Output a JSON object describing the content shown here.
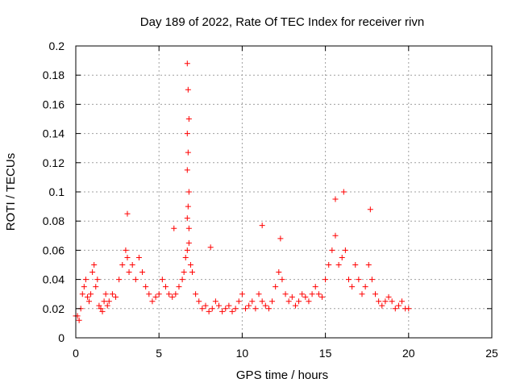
{
  "chart_data": {
    "type": "scatter",
    "title": "Day 189 of 2022, Rate Of TEC Index for receiver rivn",
    "xlabel": "GPS time / hours",
    "ylabel": "ROTI / TECUs",
    "xlim": [
      0,
      25
    ],
    "ylim": [
      0,
      0.2
    ],
    "xticks": [
      0,
      5,
      10,
      15,
      20,
      25
    ],
    "xtick_labels": [
      "0",
      "5",
      "10",
      "15",
      "20",
      "25"
    ],
    "yticks": [
      0,
      0.02,
      0.04,
      0.06,
      0.08,
      0.1,
      0.12,
      0.14,
      0.16,
      0.18,
      0.2
    ],
    "ytick_labels": [
      "0",
      "0.02",
      "0.04",
      "0.06",
      "0.08",
      "0.1",
      "0.12",
      "0.14",
      "0.16",
      "0.18",
      "0.2"
    ],
    "grid": true,
    "marker": "+",
    "color": "#ff0000",
    "series": [
      {
        "x": [
          0.0,
          0.1,
          0.2,
          0.3,
          0.4,
          0.5,
          0.6,
          0.7,
          0.8,
          0.9,
          1.0,
          1.1,
          1.2,
          1.3,
          1.4,
          1.5,
          1.6,
          1.7,
          1.8,
          1.9,
          2.0,
          2.2,
          2.4,
          2.6,
          2.8,
          3.0,
          3.1,
          3.2,
          3.4,
          3.6,
          3.8,
          4.0,
          4.2,
          4.4,
          4.6,
          4.8,
          5.0,
          5.2,
          5.4,
          5.6,
          5.8,
          6.0,
          6.2,
          6.4,
          6.5,
          6.6,
          6.7,
          6.8,
          6.9,
          7.0,
          7.2,
          7.4,
          7.6,
          7.8,
          8.0,
          8.2,
          8.4,
          8.6,
          8.8,
          9.0,
          9.2,
          9.4,
          9.6,
          9.8,
          10.0,
          10.2,
          10.4,
          10.6,
          10.8,
          11.0,
          11.2,
          11.4,
          11.6,
          11.8,
          12.0,
          12.2,
          12.4,
          12.6,
          12.8,
          13.0,
          13.2,
          13.4,
          13.6,
          13.8,
          14.0,
          14.2,
          14.4,
          14.6,
          14.8,
          15.0,
          15.2,
          15.4,
          15.6,
          15.8,
          16.0,
          16.2,
          16.4,
          16.6,
          16.8,
          17.0,
          17.2,
          17.4,
          17.6,
          17.8,
          18.0,
          18.2,
          18.4,
          18.6,
          18.8,
          19.0,
          19.2,
          19.4,
          19.6,
          19.8,
          20.0,
          6.7,
          6.75,
          6.8,
          6.7,
          6.75,
          6.7,
          6.8,
          6.75,
          6.7,
          6.8,
          15.6,
          16.1,
          17.7,
          3.1,
          11.2,
          12.3,
          5.9,
          8.1
        ],
        "y": [
          0.015,
          0.015,
          0.012,
          0.02,
          0.03,
          0.035,
          0.04,
          0.028,
          0.025,
          0.03,
          0.045,
          0.05,
          0.035,
          0.04,
          0.022,
          0.02,
          0.018,
          0.025,
          0.03,
          0.022,
          0.025,
          0.03,
          0.028,
          0.04,
          0.05,
          0.06,
          0.055,
          0.045,
          0.05,
          0.04,
          0.055,
          0.045,
          0.035,
          0.03,
          0.025,
          0.028,
          0.03,
          0.04,
          0.035,
          0.03,
          0.028,
          0.03,
          0.035,
          0.04,
          0.045,
          0.055,
          0.06,
          0.065,
          0.05,
          0.045,
          0.03,
          0.025,
          0.02,
          0.022,
          0.018,
          0.02,
          0.025,
          0.022,
          0.018,
          0.02,
          0.022,
          0.018,
          0.02,
          0.025,
          0.03,
          0.02,
          0.022,
          0.025,
          0.02,
          0.03,
          0.025,
          0.022,
          0.02,
          0.025,
          0.035,
          0.045,
          0.04,
          0.03,
          0.025,
          0.028,
          0.022,
          0.025,
          0.03,
          0.028,
          0.025,
          0.03,
          0.035,
          0.03,
          0.028,
          0.04,
          0.05,
          0.06,
          0.07,
          0.05,
          0.055,
          0.06,
          0.04,
          0.035,
          0.05,
          0.04,
          0.03,
          0.035,
          0.05,
          0.04,
          0.03,
          0.025,
          0.022,
          0.025,
          0.028,
          0.025,
          0.02,
          0.022,
          0.025,
          0.02,
          0.02,
          0.188,
          0.17,
          0.15,
          0.14,
          0.127,
          0.115,
          0.1,
          0.09,
          0.082,
          0.075,
          0.095,
          0.1,
          0.088,
          0.085,
          0.077,
          0.068,
          0.075,
          0.062
        ]
      }
    ]
  }
}
